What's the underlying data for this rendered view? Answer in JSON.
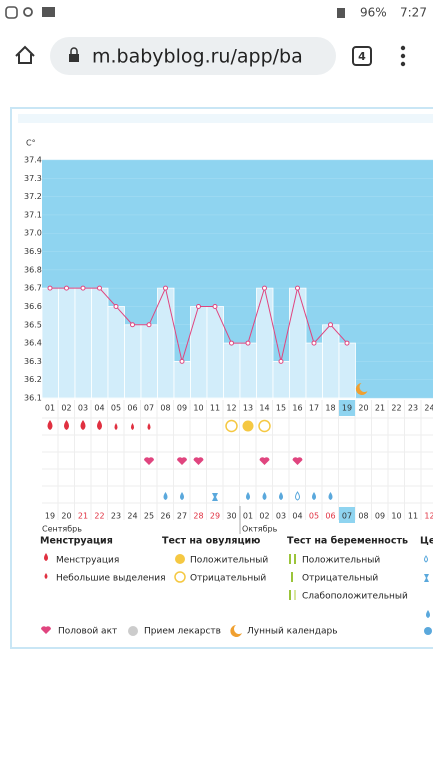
{
  "status_bar": {
    "battery": "96%",
    "time": "7:27"
  },
  "browser": {
    "url": "m.babyblog.ru/app/ba",
    "tabs": "4"
  },
  "chart_data": {
    "type": "line",
    "y_unit": "C°",
    "categories": [
      "01",
      "02",
      "03",
      "04",
      "05",
      "06",
      "07",
      "08",
      "09",
      "10",
      "11",
      "12",
      "13",
      "14",
      "15",
      "16",
      "17",
      "18",
      "19",
      "20",
      "21",
      "22",
      "23",
      "24"
    ],
    "values": [
      36.7,
      36.7,
      36.7,
      36.7,
      36.6,
      36.5,
      36.5,
      36.7,
      36.3,
      36.6,
      36.6,
      36.4,
      36.4,
      36.7,
      36.3,
      36.7,
      36.4,
      36.5,
      36.4,
      null,
      null,
      null,
      null,
      null
    ],
    "color": "#e0457f",
    "bar_color": "#d2edfa",
    "plot_color": "#8fd4f0",
    "ylim": [
      36.1,
      37.4
    ],
    "yticks": [
      36.1,
      36.2,
      36.3,
      36.4,
      36.5,
      36.6,
      36.7,
      36.8,
      36.9,
      {
        "value": 37,
        "label": "37.0"
      },
      37.1,
      37.2,
      37.3,
      37.4
    ],
    "today_index": 18,
    "dates": [
      {
        "text": "19"
      },
      {
        "text": "20"
      },
      {
        "text": "21",
        "red": true
      },
      {
        "text": "22",
        "red": true
      },
      {
        "text": "23"
      },
      {
        "text": "24"
      },
      {
        "text": "25"
      },
      {
        "text": "26"
      },
      {
        "text": "27"
      },
      {
        "text": "28",
        "red": true
      },
      {
        "text": "29",
        "red": true
      },
      {
        "text": "30"
      },
      {
        "text": "01"
      },
      {
        "text": "02"
      },
      {
        "text": "03"
      },
      {
        "text": "04"
      },
      {
        "text": "05",
        "red": true
      },
      {
        "text": "06",
        "red": true
      },
      {
        "text": "07",
        "today": true
      },
      {
        "text": "08"
      },
      {
        "text": "09"
      },
      {
        "text": "10"
      },
      {
        "text": "11"
      },
      {
        "text": "12",
        "red": true
      }
    ],
    "months": [
      "Сентябрь",
      "Октябрь"
    ]
  },
  "legend": {
    "menstruation": {
      "title": "Менструация",
      "items": [
        "Менструация",
        "Небольшие выделения"
      ]
    },
    "ovulation": {
      "title": "Тест на овуляцию",
      "items": [
        "Положительный",
        "Отрицательный"
      ]
    },
    "pregnancy": {
      "title": "Тест на беременность",
      "items": [
        "Положительный",
        "Отрицательный",
        "Слабоположительный"
      ]
    },
    "cervix": {
      "title": "Це"
    },
    "bottom": [
      "Половой акт",
      "Прием лекарств",
      "Лунный календарь"
    ]
  }
}
